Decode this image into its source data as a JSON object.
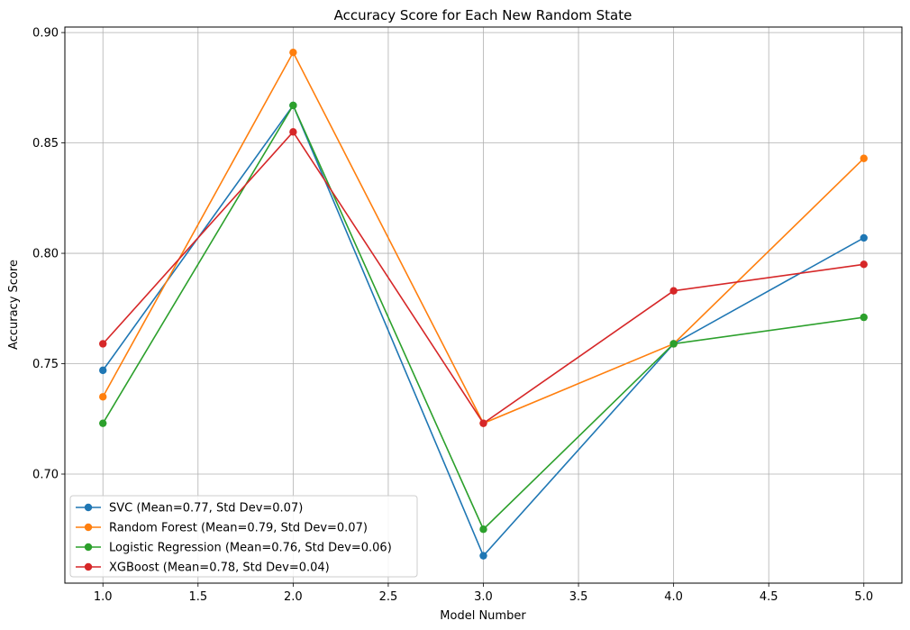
{
  "chart_data": {
    "type": "line",
    "title": "Accuracy Score for Each New Random State",
    "xlabel": "Model Number",
    "ylabel": "Accuracy Score",
    "x": [
      1.0,
      2.0,
      3.0,
      4.0,
      5.0
    ],
    "xlim": [
      0.8,
      5.2
    ],
    "ylim": [
      0.6506,
      0.9025
    ],
    "xticks": [
      1.0,
      1.5,
      2.0,
      2.5,
      3.0,
      3.5,
      4.0,
      4.5,
      5.0
    ],
    "xtick_labels": [
      "1.0",
      "1.5",
      "2.0",
      "2.5",
      "3.0",
      "3.5",
      "4.0",
      "4.5",
      "5.0"
    ],
    "yticks": [
      0.7,
      0.75,
      0.8,
      0.85,
      0.9
    ],
    "ytick_labels": [
      "0.70",
      "0.75",
      "0.80",
      "0.85",
      "0.90"
    ],
    "grid": true,
    "legend_position": "lower-left",
    "series": [
      {
        "name": "SVC (Mean=0.77, Std Dev=0.07)",
        "color": "#1f77b4",
        "values": [
          0.747,
          0.867,
          0.663,
          0.759,
          0.807
        ]
      },
      {
        "name": "Random Forest (Mean=0.79, Std Dev=0.07)",
        "color": "#ff7f0e",
        "values": [
          0.735,
          0.891,
          0.723,
          0.759,
          0.843
        ]
      },
      {
        "name": "Logistic Regression (Mean=0.76, Std Dev=0.06)",
        "color": "#2ca02c",
        "values": [
          0.723,
          0.867,
          0.675,
          0.759,
          0.771
        ]
      },
      {
        "name": "XGBoost (Mean=0.78, Std Dev=0.04)",
        "color": "#d62728",
        "values": [
          0.759,
          0.855,
          0.723,
          0.783,
          0.795
        ]
      }
    ]
  }
}
